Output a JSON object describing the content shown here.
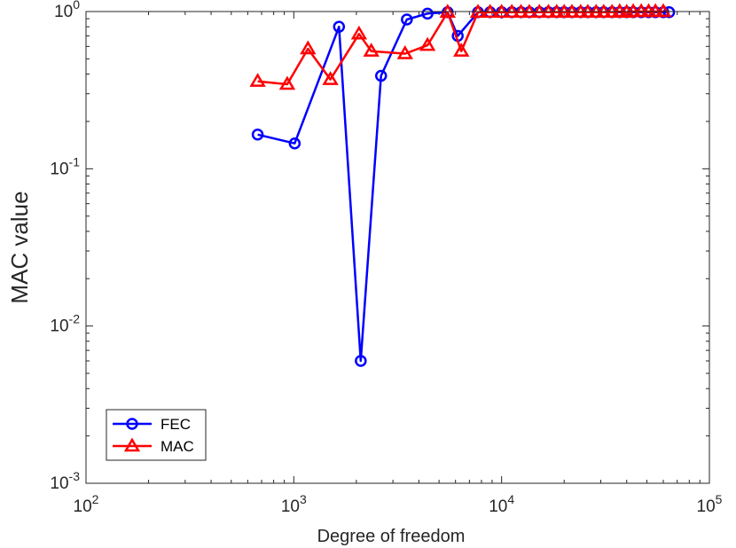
{
  "chart_data": {
    "type": "line",
    "xscale": "log",
    "yscale": "log",
    "xlim": [
      100,
      100000
    ],
    "ylim": [
      0.001,
      1
    ],
    "xlabel": "Degree of freedom",
    "ylabel": "MAC value",
    "x_ticks": [
      100,
      1000,
      10000,
      100000
    ],
    "x_tick_labels": [
      {
        "base": "10",
        "exp": "2"
      },
      {
        "base": "10",
        "exp": "3"
      },
      {
        "base": "10",
        "exp": "4"
      },
      {
        "base": "10",
        "exp": "5"
      }
    ],
    "y_ticks": [
      0.001,
      0.01,
      0.1,
      1
    ],
    "y_tick_labels": [
      {
        "base": "10",
        "exp": "-3"
      },
      {
        "base": "10",
        "exp": "-2"
      },
      {
        "base": "10",
        "exp": "-1"
      },
      {
        "base": "10",
        "exp": "0"
      }
    ],
    "legend_position": "bottom-left",
    "series": [
      {
        "name": "FEC",
        "color": "#0000ff",
        "marker": "circle",
        "x": [
          670,
          1010,
          1650,
          2100,
          2630,
          3500,
          4400,
          5500,
          6150,
          7700,
          8800,
          10000,
          11200,
          12400,
          13600,
          15200,
          16800,
          18400,
          20000,
          21800,
          24000,
          26000,
          28500,
          31000,
          34000,
          37000,
          40000,
          43000,
          47000,
          51000,
          55000,
          60000,
          64000
        ],
        "y": [
          0.165,
          0.145,
          0.8,
          0.006,
          0.39,
          0.89,
          0.97,
          0.99,
          0.7,
          0.99,
          0.99,
          0.99,
          0.99,
          0.99,
          0.99,
          0.99,
          0.99,
          0.99,
          0.99,
          0.99,
          0.99,
          0.99,
          0.99,
          0.99,
          0.99,
          0.99,
          0.99,
          0.99,
          0.99,
          0.99,
          0.99,
          0.99,
          0.99
        ]
      },
      {
        "name": "MAC",
        "color": "#ff0000",
        "marker": "triangle",
        "x": [
          670,
          930,
          1170,
          1500,
          2060,
          2360,
          3430,
          4400,
          5500,
          6400,
          7700,
          8800,
          10000,
          11200,
          12400,
          13600,
          15200,
          16800,
          18400,
          20000,
          21800,
          24000,
          26000,
          28500,
          31000,
          34000,
          37000,
          40000,
          43000,
          47000,
          51000,
          55000,
          60000
        ],
        "y": [
          0.36,
          0.345,
          0.58,
          0.37,
          0.72,
          0.56,
          0.54,
          0.61,
          0.99,
          0.56,
          0.99,
          0.99,
          0.99,
          0.99,
          0.99,
          0.99,
          0.99,
          0.99,
          0.99,
          0.99,
          0.99,
          0.99,
          0.99,
          0.99,
          0.99,
          0.99,
          1.0,
          0.99,
          1.0,
          1.0,
          1.0,
          1.0,
          1.0
        ]
      }
    ]
  }
}
